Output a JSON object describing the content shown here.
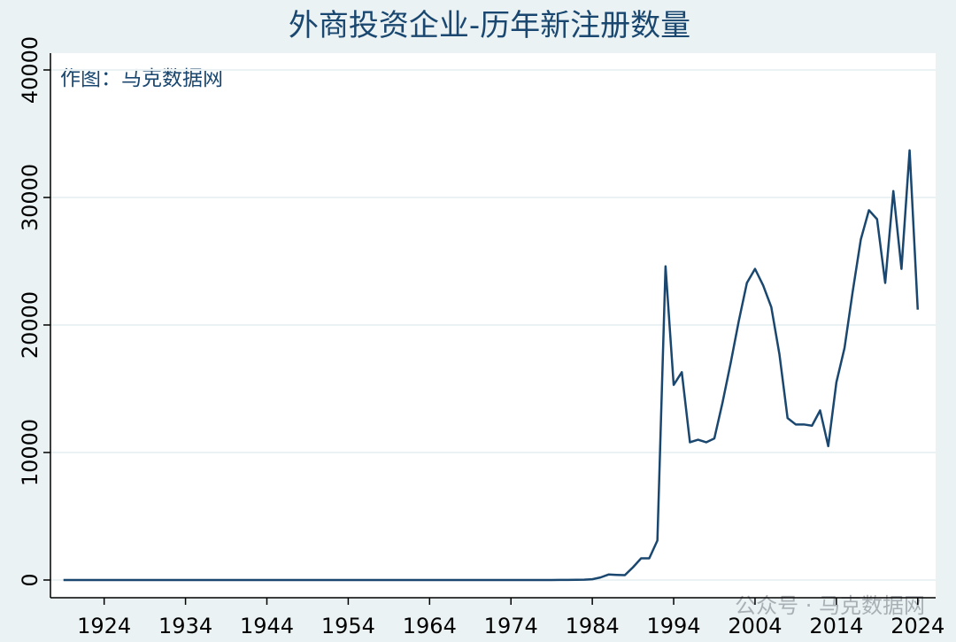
{
  "chart_data": {
    "type": "line",
    "title": "外商投资企业-历年新注册数量",
    "annotation": "作图：马克数据网",
    "watermark": "公众号 · 马克数据网",
    "x": [
      1919,
      1920,
      1921,
      1922,
      1923,
      1924,
      1925,
      1926,
      1927,
      1928,
      1929,
      1930,
      1931,
      1932,
      1933,
      1934,
      1935,
      1936,
      1937,
      1938,
      1939,
      1940,
      1941,
      1942,
      1943,
      1944,
      1945,
      1946,
      1947,
      1948,
      1949,
      1950,
      1951,
      1952,
      1953,
      1954,
      1955,
      1956,
      1957,
      1958,
      1959,
      1960,
      1961,
      1962,
      1963,
      1964,
      1965,
      1966,
      1967,
      1968,
      1969,
      1970,
      1971,
      1972,
      1973,
      1974,
      1975,
      1976,
      1977,
      1978,
      1979,
      1980,
      1981,
      1982,
      1983,
      1984,
      1985,
      1986,
      1987,
      1988,
      1989,
      1990,
      1991,
      1992,
      1993,
      1994,
      1995,
      1996,
      1997,
      1998,
      1999,
      2000,
      2001,
      2002,
      2003,
      2004,
      2005,
      2006,
      2007,
      2008,
      2009,
      2010,
      2011,
      2012,
      2013,
      2014,
      2015,
      2016,
      2017,
      2018,
      2019,
      2020,
      2021,
      2022,
      2023,
      2024
    ],
    "series": [
      {
        "color": "#1a476f",
        "values": [
          0,
          0,
          0,
          0,
          0,
          0,
          0,
          0,
          0,
          0,
          0,
          0,
          0,
          0,
          0,
          0,
          0,
          0,
          0,
          0,
          0,
          0,
          0,
          0,
          0,
          0,
          0,
          0,
          0,
          0,
          0,
          0,
          0,
          0,
          0,
          0,
          0,
          0,
          0,
          0,
          0,
          0,
          0,
          0,
          0,
          0,
          0,
          0,
          0,
          0,
          0,
          0,
          0,
          0,
          0,
          0,
          0,
          0,
          0,
          0,
          0,
          10,
          10,
          20,
          30,
          60,
          200,
          430,
          400,
          380,
          1000,
          1700,
          1700,
          3100,
          24600,
          15300,
          16300,
          10800,
          11000,
          10800,
          11100,
          13900,
          17000,
          20300,
          23300,
          24400,
          23100,
          21400,
          17700,
          12700,
          12200,
          12200,
          12100,
          13300,
          10500,
          15500,
          18200,
          22600,
          26700,
          29000,
          28300,
          23300,
          30500,
          24400,
          33700,
          21200
        ]
      }
    ],
    "xlim": [
      1917.4,
      2026.2
    ],
    "xticks": [
      1924,
      1934,
      1944,
      1954,
      1964,
      1974,
      1984,
      1994,
      2004,
      2014,
      2024
    ],
    "ylim": [
      -1389,
      41319
    ],
    "yticks": [
      0,
      10000,
      20000,
      30000,
      40000
    ],
    "grid": true
  }
}
